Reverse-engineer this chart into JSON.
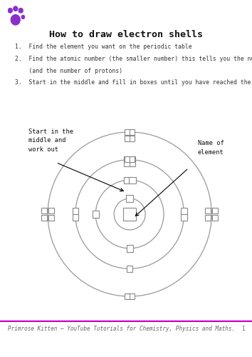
{
  "title": "How to draw electron shells",
  "instructions": [
    "Find the element you want on the periodic table",
    "Find the atomic number (the smaller number) this tells you the number of electrons\n(and the number of protons)",
    "Start in the middle and fill in boxes until you have reached the total"
  ],
  "footer_line_color": "#CC00CC",
  "footer_text": "Primrose Kitten – YouTube Tutorials for Chemistry, Physics and Maths.",
  "footer_page": "1",
  "paw_color": "#8B2FC9",
  "label_left": "Start in the\nmiddle and\nwork out",
  "label_right": "Name of\nelement",
  "bg_color": "#ffffff",
  "circle_color": "#999999",
  "box_color": "#ffffff",
  "box_edge": "#888888"
}
